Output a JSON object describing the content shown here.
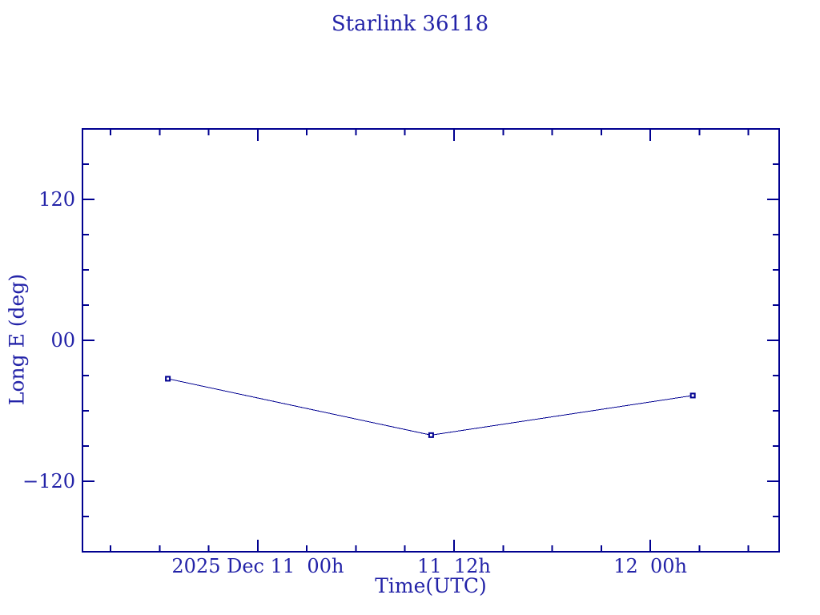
{
  "colors": {
    "plot": "#000090",
    "text": "#2323a8",
    "background": "#ffffff",
    "marker_fill": "#ffffff"
  },
  "chart_data": {
    "type": "line",
    "title": "Starlink 36118",
    "xlabel": "Time(UTC)",
    "ylabel": "Long E (deg)",
    "x_axis_epoch": "2025 Dec 11 00h UTC",
    "x_units": "hours relative to epoch",
    "y_units": "degrees longitude east",
    "series": [
      {
        "name": "Long E",
        "x_hours": [
          -5.5,
          10.6,
          26.6
        ],
        "y_deg": [
          -32.7,
          -80.7,
          -47.0
        ]
      }
    ],
    "xlim_hours": [
      -10.72,
      31.88
    ],
    "ylim_deg": [
      -180,
      180
    ],
    "x_major_ticks": [
      {
        "hours": 0,
        "label": "2025 Dec 11  00h"
      },
      {
        "hours": 12,
        "label": "11  12h"
      },
      {
        "hours": 24,
        "label": "12  00h"
      }
    ],
    "x_minor_ticks_hours": [
      -9,
      -6,
      -3,
      3,
      6,
      9,
      15,
      18,
      21,
      27,
      30
    ],
    "y_major_ticks": [
      {
        "deg": 120,
        "label": "120"
      },
      {
        "deg": 0,
        "label": "00"
      },
      {
        "deg": -120,
        "label": "−120"
      }
    ],
    "y_minor_ticks_deg": [
      -150,
      -90,
      -60,
      -30,
      30,
      60,
      90,
      150
    ],
    "marker": "open-square",
    "grid": false,
    "legend": null
  }
}
